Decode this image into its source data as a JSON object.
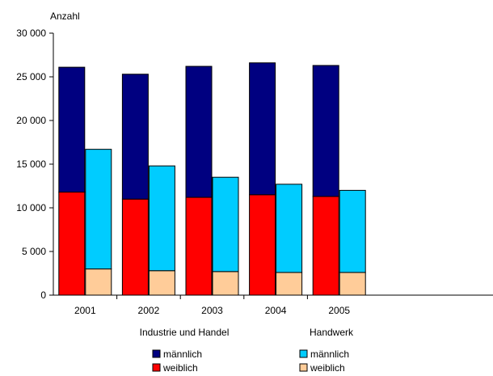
{
  "chart_data": {
    "type": "bar",
    "stacked": true,
    "grouped": true,
    "categories": [
      "2001",
      "2002",
      "2003",
      "2004",
      "2005"
    ],
    "ylabel": "Anzahl",
    "ylim": [
      0,
      30000
    ],
    "yticks": [
      0,
      5000,
      10000,
      15000,
      20000,
      25000,
      30000
    ],
    "ytick_labels": [
      "0",
      "5 000",
      "10 000",
      "15 000",
      "20 000",
      "25 000",
      "30 000"
    ],
    "grid": false,
    "legend_placement": "bottom",
    "groups": [
      {
        "name": "Industrie und Handel",
        "series": [
          {
            "name": "weiblich",
            "color": "#ff0000",
            "values": [
              11800,
              11000,
              11200,
              11500,
              11300
            ]
          },
          {
            "name": "männlich",
            "color": "#000080",
            "values": [
              14300,
              14300,
              15000,
              15100,
              15000
            ]
          }
        ]
      },
      {
        "name": "Handwerk",
        "series": [
          {
            "name": "weiblich",
            "color": "#ffcc99",
            "values": [
              3000,
              2800,
              2700,
              2600,
              2600
            ]
          },
          {
            "name": "männlich",
            "color": "#00ccff",
            "values": [
              13700,
              12000,
              10800,
              10100,
              9400
            ]
          }
        ]
      }
    ]
  }
}
